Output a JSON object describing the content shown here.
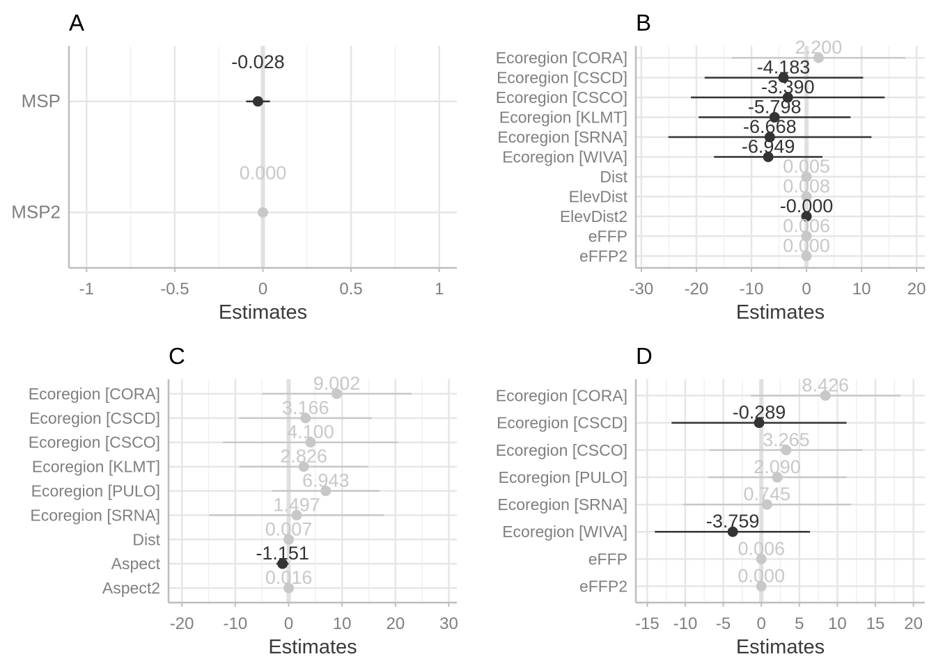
{
  "colors": {
    "significant": "#333333",
    "nonsignificant": "#c8c8c8",
    "grid_major": "#e6e6e6",
    "grid_minor": "#f1f1f1",
    "zero_line": "#e0e0e0",
    "axis": "#bdbdbd",
    "tick_text": "#7f7f7f",
    "axis_title": "#3a3a3a",
    "panel_tag": "#000000"
  },
  "chart_data": [
    {
      "type": "forest",
      "tag": "A",
      "xlabel": "Estimates",
      "xlim": [
        -1.1,
        1.1
      ],
      "xticks": [
        -1,
        -0.5,
        0,
        0.5,
        1
      ],
      "xtick_labels": [
        "-1",
        "-0.5",
        "0",
        "0.5",
        "1"
      ],
      "terms": [
        {
          "term": "MSP",
          "estimate": -0.028,
          "label": "-0.028",
          "ci": [
            -0.095,
            0.04
          ],
          "significant": true
        },
        {
          "term": "MSP2",
          "estimate": 0.0,
          "label": "0.000",
          "ci": [
            -0.003,
            0.003
          ],
          "significant": false
        }
      ]
    },
    {
      "type": "forest",
      "tag": "B",
      "xlabel": "Estimates",
      "xlim": [
        -31,
        21.5
      ],
      "xticks": [
        -30,
        -20,
        -10,
        0,
        10,
        20
      ],
      "xtick_labels": [
        "-30",
        "-20",
        "-10",
        "0",
        "10",
        "20"
      ],
      "terms": [
        {
          "term": "Ecoregion [CORA]",
          "estimate": 2.2,
          "label": "2.200",
          "ci": [
            -13.6,
            18.0
          ],
          "significant": false
        },
        {
          "term": "Ecoregion [CSCD]",
          "estimate": -4.183,
          "label": "-4.183",
          "ci": [
            -18.5,
            10.3
          ],
          "significant": true
        },
        {
          "term": "Ecoregion [CSCO]",
          "estimate": -3.39,
          "label": "-3.390",
          "ci": [
            -21.0,
            14.2
          ],
          "significant": true
        },
        {
          "term": "Ecoregion [KLMT]",
          "estimate": -5.798,
          "label": "-5.798",
          "ci": [
            -19.6,
            8.0
          ],
          "significant": true
        },
        {
          "term": "Ecoregion [SRNA]",
          "estimate": -6.668,
          "label": "-6.668",
          "ci": [
            -25.1,
            11.8
          ],
          "significant": true
        },
        {
          "term": "Ecoregion [WIVA]",
          "estimate": -6.949,
          "label": "-6.949",
          "ci": [
            -16.8,
            2.9
          ],
          "significant": true
        },
        {
          "term": "Dist",
          "estimate": 0.005,
          "label": "0.005",
          "ci": [
            -0.2,
            0.2
          ],
          "significant": false
        },
        {
          "term": "ElevDist",
          "estimate": 0.008,
          "label": "0.008",
          "ci": [
            -0.2,
            0.2
          ],
          "significant": false
        },
        {
          "term": "ElevDist2",
          "estimate": -0.0,
          "label": "-0.000",
          "ci": [
            -0.2,
            0.2
          ],
          "significant": true
        },
        {
          "term": "eFFP",
          "estimate": 0.006,
          "label": "0.006",
          "ci": [
            -0.2,
            0.2
          ],
          "significant": false
        },
        {
          "term": "eFFP2",
          "estimate": 0.0,
          "label": "0.000",
          "ci": [
            -0.2,
            0.2
          ],
          "significant": false
        }
      ]
    },
    {
      "type": "forest",
      "tag": "C",
      "xlabel": "Estimates",
      "xlim": [
        -22.5,
        31.5
      ],
      "xticks": [
        -20,
        -10,
        0,
        10,
        20,
        30
      ],
      "xtick_labels": [
        "-20",
        "-10",
        "0",
        "10",
        "20",
        "30"
      ],
      "terms": [
        {
          "term": "Ecoregion [CORA]",
          "estimate": 9.002,
          "label": "9.002",
          "ci": [
            -4.9,
            23.0
          ],
          "significant": false
        },
        {
          "term": "Ecoregion [CSCD]",
          "estimate": 3.166,
          "label": "3.166",
          "ci": [
            -9.3,
            15.6
          ],
          "significant": false
        },
        {
          "term": "Ecoregion [CSCO]",
          "estimate": 4.1,
          "label": "4.100",
          "ci": [
            -12.3,
            20.5
          ],
          "significant": false
        },
        {
          "term": "Ecoregion [KLMT]",
          "estimate": 2.826,
          "label": "2.826",
          "ci": [
            -9.2,
            14.8
          ],
          "significant": false
        },
        {
          "term": "Ecoregion [PULO]",
          "estimate": 6.943,
          "label": "6.943",
          "ci": [
            -3.1,
            17.0
          ],
          "significant": false
        },
        {
          "term": "Ecoregion [SRNA]",
          "estimate": 1.497,
          "label": "1.497",
          "ci": [
            -14.9,
            17.9
          ],
          "significant": false
        },
        {
          "term": "Dist",
          "estimate": 0.007,
          "label": "0.007",
          "ci": [
            -0.2,
            0.2
          ],
          "significant": false
        },
        {
          "term": "Aspect",
          "estimate": -1.151,
          "label": "-1.151",
          "ci": [
            -2.3,
            0.0
          ],
          "significant": true
        },
        {
          "term": "Aspect2",
          "estimate": 0.016,
          "label": "0.016",
          "ci": [
            -0.2,
            0.2
          ],
          "significant": false
        }
      ]
    },
    {
      "type": "forest",
      "tag": "D",
      "xlabel": "Estimates",
      "xlim": [
        -16.5,
        21.5
      ],
      "xticks": [
        -15,
        -10,
        -5,
        0,
        5,
        10,
        15,
        20
      ],
      "xtick_labels": [
        "-15",
        "-10",
        "-5",
        "0",
        "5",
        "10",
        "15",
        "20"
      ],
      "terms": [
        {
          "term": "Ecoregion [CORA]",
          "estimate": 8.426,
          "label": "8.426",
          "ci": [
            -1.4,
            18.3
          ],
          "significant": false
        },
        {
          "term": "Ecoregion [CSCD]",
          "estimate": -0.289,
          "label": "-0.289",
          "ci": [
            -11.8,
            11.2
          ],
          "significant": true
        },
        {
          "term": "Ecoregion [CSCO]",
          "estimate": 3.265,
          "label": "3.265",
          "ci": [
            -6.8,
            13.3
          ],
          "significant": false
        },
        {
          "term": "Ecoregion [PULO]",
          "estimate": 2.09,
          "label": "2.090",
          "ci": [
            -7.0,
            11.2
          ],
          "significant": false
        },
        {
          "term": "Ecoregion [SRNA]",
          "estimate": 0.745,
          "label": "0.745",
          "ci": [
            -10.3,
            11.8
          ],
          "significant": false
        },
        {
          "term": "Ecoregion [WIVA]",
          "estimate": -3.759,
          "label": "-3.759",
          "ci": [
            -14.0,
            6.4
          ],
          "significant": true
        },
        {
          "term": "eFFP",
          "estimate": 0.006,
          "label": "0.006",
          "ci": [
            -0.2,
            0.2
          ],
          "significant": false
        },
        {
          "term": "eFFP2",
          "estimate": 0.0,
          "label": "0.000",
          "ci": [
            -0.2,
            0.2
          ],
          "significant": false
        }
      ]
    }
  ]
}
